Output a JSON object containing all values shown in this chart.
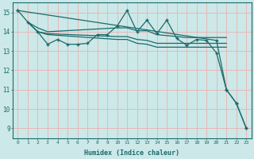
{
  "bg_color": "#cce8e8",
  "grid_color": "#e8b8b8",
  "line_color": "#1a6b6b",
  "xlabel": "Humidex (Indice chaleur)",
  "xlim": [
    -0.5,
    23.5
  ],
  "ylim": [
    8.5,
    15.5
  ],
  "yticks": [
    9,
    10,
    11,
    12,
    13,
    14,
    15
  ],
  "xticks": [
    0,
    1,
    2,
    3,
    4,
    5,
    6,
    7,
    8,
    9,
    10,
    11,
    12,
    13,
    14,
    15,
    16,
    17,
    18,
    19,
    20,
    21,
    22,
    23
  ],
  "line_jagged": {
    "x": [
      0,
      1,
      2,
      3,
      4,
      5,
      6,
      7,
      8,
      9,
      10,
      11,
      12,
      13,
      14,
      15,
      16,
      17,
      18,
      19,
      20,
      21,
      22,
      23
    ],
    "y": [
      15.1,
      14.5,
      14.0,
      13.35,
      13.6,
      13.35,
      13.35,
      13.4,
      13.85,
      13.85,
      14.3,
      15.1,
      14.0,
      14.6,
      13.9,
      14.6,
      13.65,
      13.3,
      13.6,
      13.55,
      12.9,
      11.0,
      10.3,
      9.0
    ]
  },
  "line_flat1": {
    "x": [
      1,
      2,
      3,
      10,
      11,
      12,
      13,
      14,
      17,
      18,
      19,
      20,
      21
    ],
    "y": [
      14.5,
      14.2,
      14.0,
      14.2,
      14.2,
      14.05,
      14.05,
      13.85,
      13.7,
      13.7,
      13.7,
      13.7,
      13.7
    ]
  },
  "line_flat2": {
    "x": [
      1,
      2,
      3,
      10,
      11,
      12,
      13,
      14,
      17,
      18,
      19,
      20,
      21
    ],
    "y": [
      14.5,
      14.0,
      13.9,
      13.75,
      13.75,
      13.6,
      13.55,
      13.4,
      13.4,
      13.4,
      13.4,
      13.4,
      13.4
    ]
  },
  "line_flat3": {
    "x": [
      1,
      2,
      3,
      10,
      11,
      12,
      13,
      14,
      17,
      18,
      19,
      20,
      21
    ],
    "y": [
      14.5,
      14.0,
      13.85,
      13.6,
      13.6,
      13.4,
      13.35,
      13.2,
      13.2,
      13.2,
      13.2,
      13.2,
      13.2
    ]
  },
  "line_wedge": {
    "x": [
      0,
      20,
      21,
      22,
      23
    ],
    "y": [
      15.1,
      13.55,
      11.0,
      10.3,
      9.0
    ]
  }
}
